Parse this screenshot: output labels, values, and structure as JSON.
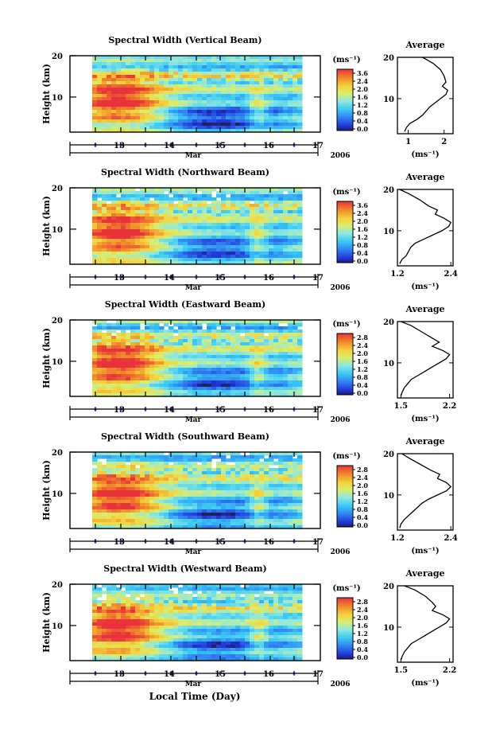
{
  "figure": {
    "xlabel": "Local Time (Day)",
    "month_label": "Mar",
    "year_label": "2006",
    "colorbar_unit": "(ms⁻¹)",
    "ylabel": "Height (km)",
    "avg_title": "Average",
    "avg_xlabel": "(ms⁻¹)"
  },
  "chart_data": [
    {
      "type": "heatmap",
      "title": "Spectral Width (Vertical Beam)",
      "x_ticks": [
        "13",
        "14",
        "15",
        "16",
        "17"
      ],
      "y_ticks": [
        "20",
        "10"
      ],
      "ylim": [
        1.5,
        20
      ],
      "colorbar_ticks": [
        "3.6",
        "2.4",
        "2.0",
        "1.6",
        "1.2",
        "0.8",
        "0.4",
        "0.0"
      ],
      "avg_profile": {
        "type": "line",
        "title": "Average",
        "xlabel": "(ms⁻¹)",
        "x_ticks": [
          "1",
          "2"
        ],
        "xlim": [
          0.7,
          2.25
        ],
        "y_ticks": [
          "20",
          "10"
        ],
        "points": [
          [
            1.4,
            20
          ],
          [
            1.5,
            19.5
          ],
          [
            1.7,
            18.5
          ],
          [
            1.9,
            17
          ],
          [
            2.0,
            15.5
          ],
          [
            2.05,
            14
          ],
          [
            1.95,
            13
          ],
          [
            2.1,
            12
          ],
          [
            2.05,
            11
          ],
          [
            1.9,
            10
          ],
          [
            1.75,
            9
          ],
          [
            1.6,
            8
          ],
          [
            1.5,
            7
          ],
          [
            1.4,
            6
          ],
          [
            1.25,
            5
          ],
          [
            1.05,
            4
          ],
          [
            0.95,
            3
          ],
          [
            0.9,
            2
          ]
        ]
      }
    },
    {
      "type": "heatmap",
      "title": "Spectral Width (Northward Beam)",
      "x_ticks": [
        "13",
        "14",
        "15",
        "16",
        "17"
      ],
      "y_ticks": [
        "20",
        "10"
      ],
      "ylim": [
        1.5,
        20
      ],
      "colorbar_ticks": [
        "3.6",
        "2.4",
        "2.0",
        "1.6",
        "1.2",
        "0.8",
        "0.4",
        "0.0"
      ],
      "avg_profile": {
        "type": "line",
        "title": "Average",
        "xlabel": "(ms⁻¹)",
        "x_ticks": [
          "1.2",
          "2.4"
        ],
        "xlim": [
          1.2,
          2.45
        ],
        "y_ticks": [
          "20",
          "10"
        ],
        "points": [
          [
            1.25,
            20
          ],
          [
            1.45,
            19
          ],
          [
            1.7,
            17.5
          ],
          [
            1.9,
            16
          ],
          [
            2.1,
            15
          ],
          [
            2.05,
            14
          ],
          [
            2.25,
            13
          ],
          [
            2.4,
            12
          ],
          [
            2.35,
            11
          ],
          [
            2.2,
            10
          ],
          [
            2.0,
            9
          ],
          [
            1.8,
            8
          ],
          [
            1.6,
            7
          ],
          [
            1.5,
            6
          ],
          [
            1.45,
            5
          ],
          [
            1.4,
            4
          ],
          [
            1.3,
            3
          ],
          [
            1.25,
            2
          ]
        ]
      }
    },
    {
      "type": "heatmap",
      "title": "Spectral Width (Eastward Beam)",
      "x_ticks": [
        "13",
        "14",
        "15",
        "16",
        "17"
      ],
      "y_ticks": [
        "20",
        "10"
      ],
      "ylim": [
        1.5,
        20
      ],
      "colorbar_ticks": [
        "2.8",
        "2.4",
        "2.0",
        "1.6",
        "1.2",
        "0.8",
        "0.4",
        "0.0"
      ],
      "avg_profile": {
        "type": "line",
        "title": "Average",
        "xlabel": "(ms⁻¹)",
        "x_ticks": [
          "1.5",
          "2.2"
        ],
        "xlim": [
          1.45,
          2.25
        ],
        "y_ticks": [
          "20",
          "10"
        ],
        "points": [
          [
            1.5,
            20
          ],
          [
            1.65,
            19
          ],
          [
            1.8,
            17.5
          ],
          [
            1.95,
            16
          ],
          [
            2.05,
            15
          ],
          [
            1.95,
            14
          ],
          [
            2.1,
            13
          ],
          [
            2.2,
            12
          ],
          [
            2.15,
            11
          ],
          [
            2.05,
            10
          ],
          [
            1.95,
            9
          ],
          [
            1.85,
            8
          ],
          [
            1.75,
            7
          ],
          [
            1.65,
            6
          ],
          [
            1.6,
            5
          ],
          [
            1.55,
            4
          ],
          [
            1.52,
            3
          ],
          [
            1.5,
            2
          ]
        ]
      }
    },
    {
      "type": "heatmap",
      "title": "Spectral Width (Southward Beam)",
      "x_ticks": [
        "13",
        "14",
        "15",
        "16",
        "17"
      ],
      "y_ticks": [
        "20",
        "10"
      ],
      "ylim": [
        1.5,
        20
      ],
      "colorbar_ticks": [
        "2.8",
        "2.4",
        "2.0",
        "1.6",
        "1.2",
        "0.8",
        "0.4",
        "0.0"
      ],
      "avg_profile": {
        "type": "line",
        "title": "Average",
        "xlabel": "(ms⁻¹)",
        "x_ticks": [
          "1.2",
          "2.4"
        ],
        "xlim": [
          1.2,
          2.45
        ],
        "y_ticks": [
          "20",
          "10"
        ],
        "points": [
          [
            1.3,
            20
          ],
          [
            1.45,
            19
          ],
          [
            1.7,
            17.5
          ],
          [
            1.95,
            16
          ],
          [
            2.15,
            15
          ],
          [
            2.1,
            14
          ],
          [
            2.3,
            13
          ],
          [
            2.4,
            12
          ],
          [
            2.3,
            11
          ],
          [
            2.1,
            10
          ],
          [
            1.9,
            9
          ],
          [
            1.75,
            8
          ],
          [
            1.65,
            7
          ],
          [
            1.55,
            6
          ],
          [
            1.45,
            5
          ],
          [
            1.35,
            4
          ],
          [
            1.28,
            3
          ],
          [
            1.25,
            2
          ]
        ]
      }
    },
    {
      "type": "heatmap",
      "title": "Spectral Width (Westward Beam)",
      "x_ticks": [
        "13",
        "14",
        "15",
        "16",
        "17"
      ],
      "y_ticks": [
        "20",
        "10"
      ],
      "ylim": [
        1.5,
        20
      ],
      "colorbar_ticks": [
        "2.8",
        "2.4",
        "2.0",
        "1.6",
        "1.2",
        "0.8",
        "0.4",
        "0.0"
      ],
      "avg_profile": {
        "type": "line",
        "title": "Average",
        "xlabel": "(ms⁻¹)",
        "x_ticks": [
          "1.5",
          "2.2"
        ],
        "xlim": [
          1.45,
          2.25
        ],
        "y_ticks": [
          "20",
          "10"
        ],
        "points": [
          [
            1.55,
            20
          ],
          [
            1.7,
            19
          ],
          [
            1.85,
            17.5
          ],
          [
            1.95,
            16
          ],
          [
            2.0,
            15
          ],
          [
            1.95,
            14
          ],
          [
            2.1,
            13
          ],
          [
            2.2,
            12
          ],
          [
            2.15,
            11
          ],
          [
            2.05,
            10
          ],
          [
            1.95,
            9
          ],
          [
            1.85,
            8
          ],
          [
            1.75,
            7
          ],
          [
            1.65,
            6
          ],
          [
            1.6,
            5
          ],
          [
            1.55,
            4
          ],
          [
            1.52,
            3
          ],
          [
            1.5,
            2
          ]
        ]
      }
    }
  ]
}
